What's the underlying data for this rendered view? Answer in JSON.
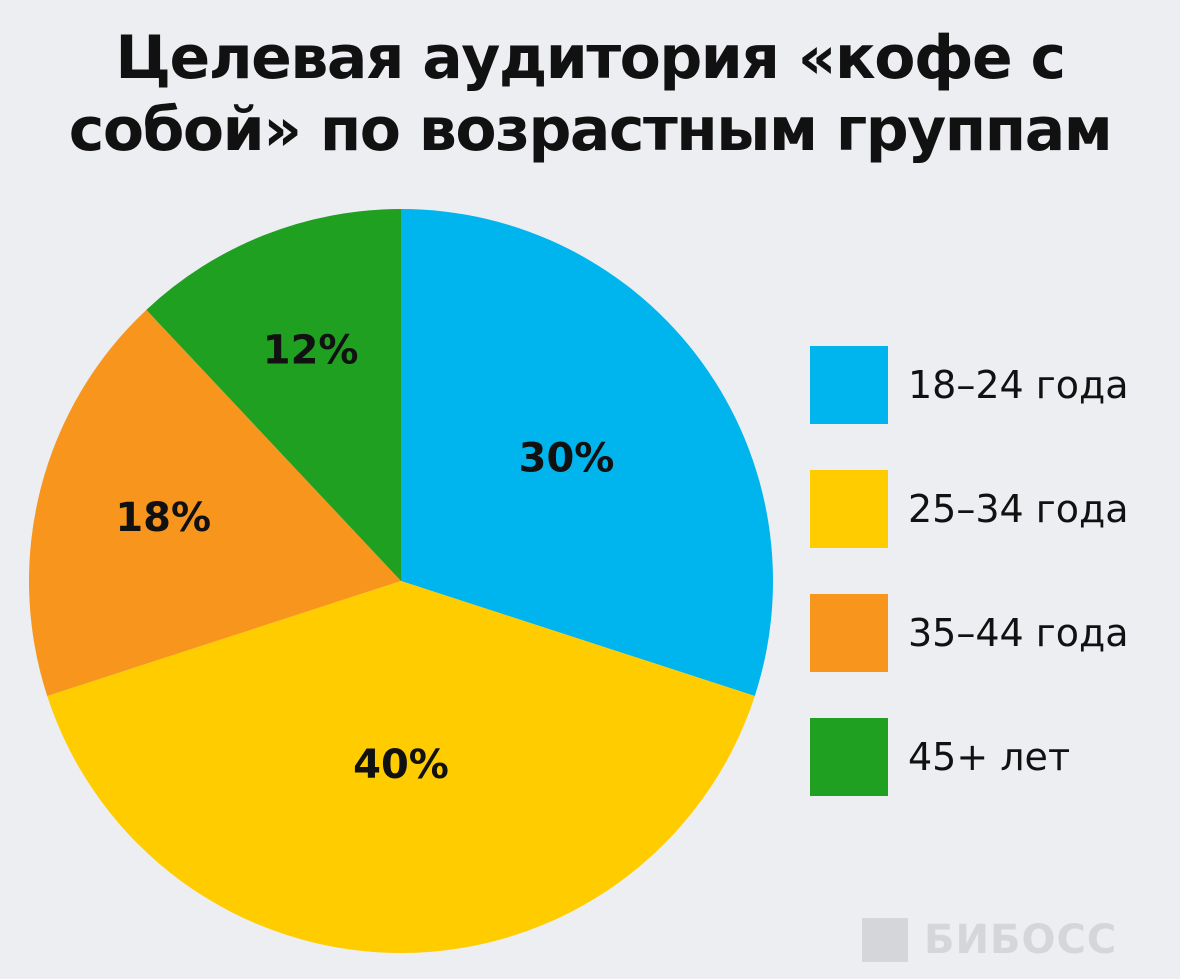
{
  "chart_data": {
    "type": "pie",
    "title_lines": [
      "Целевая аудитория «кофе с",
      "собой» по возрастным группам"
    ],
    "categories": [
      "18–24 года",
      "25–34 года",
      "35–44 года",
      "45+ лет"
    ],
    "values": [
      30,
      40,
      18,
      12
    ],
    "value_labels": [
      "30%",
      "40%",
      "18%",
      "12%"
    ],
    "colors": [
      "#00b4ee",
      "#ffcc00",
      "#f7951d",
      "#20a020"
    ],
    "start_angle": "12 o'clock",
    "direction": "clockwise",
    "legend_position": "right"
  },
  "watermark": {
    "text": "БИБОСС"
  }
}
